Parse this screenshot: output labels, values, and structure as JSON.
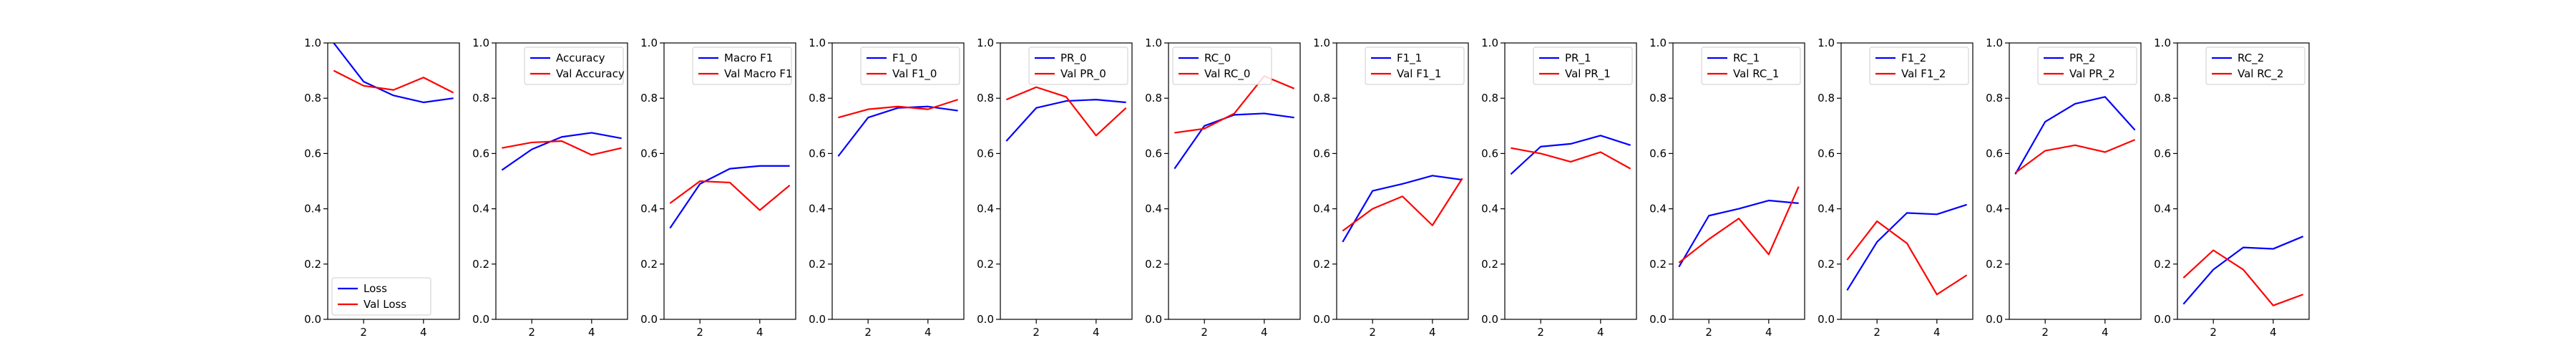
{
  "colors": {
    "train": "#0000ff",
    "val": "#ff0000",
    "axis": "#000000",
    "legend_edge": "#cccccc"
  },
  "chart_data": [
    {
      "type": "line",
      "x": [
        1,
        2,
        3,
        4,
        5
      ],
      "xticks": [
        "2",
        "4"
      ],
      "xlim": [
        0.8,
        5.2
      ],
      "yticks": [
        "0.0",
        "0.2",
        "0.4",
        "0.6",
        "0.8",
        "1.0"
      ],
      "ylim": [
        0,
        1
      ],
      "grid": false,
      "legend_position": "lower-left",
      "series": [
        {
          "name": "Loss",
          "color": "#0000ff",
          "values": [
            1.0,
            0.86,
            0.81,
            0.785,
            0.8
          ]
        },
        {
          "name": "Val Loss",
          "color": "#ff0000",
          "values": [
            0.9,
            0.845,
            0.83,
            0.875,
            0.82
          ]
        }
      ]
    },
    {
      "type": "line",
      "x": [
        1,
        2,
        3,
        4,
        5
      ],
      "xticks": [
        "2",
        "4"
      ],
      "xlim": [
        0.8,
        5.2
      ],
      "yticks": [
        "0.0",
        "0.2",
        "0.4",
        "0.6",
        "0.8",
        "1.0"
      ],
      "ylim": [
        0,
        1
      ],
      "grid": false,
      "legend_position": "top-right",
      "series": [
        {
          "name": "Accuracy",
          "color": "#0000ff",
          "values": [
            0.54,
            0.615,
            0.66,
            0.675,
            0.655
          ]
        },
        {
          "name": "Val Accuracy",
          "color": "#ff0000",
          "values": [
            0.62,
            0.64,
            0.645,
            0.595,
            0.62
          ]
        }
      ]
    },
    {
      "type": "line",
      "x": [
        1,
        2,
        3,
        4,
        5
      ],
      "xticks": [
        "2",
        "4"
      ],
      "xlim": [
        0.8,
        5.2
      ],
      "yticks": [
        "0.0",
        "0.2",
        "0.4",
        "0.6",
        "0.8",
        "1.0"
      ],
      "ylim": [
        0,
        1
      ],
      "grid": false,
      "legend_position": "top-right",
      "series": [
        {
          "name": "Macro F1",
          "color": "#0000ff",
          "values": [
            0.33,
            0.49,
            0.545,
            0.555,
            0.555
          ]
        },
        {
          "name": "Val Macro F1",
          "color": "#ff0000",
          "values": [
            0.42,
            0.5,
            0.495,
            0.395,
            0.485
          ]
        }
      ]
    },
    {
      "type": "line",
      "x": [
        1,
        2,
        3,
        4,
        5
      ],
      "xticks": [
        "2",
        "4"
      ],
      "xlim": [
        0.8,
        5.2
      ],
      "yticks": [
        "0.0",
        "0.2",
        "0.4",
        "0.6",
        "0.8",
        "1.0"
      ],
      "ylim": [
        0,
        1
      ],
      "grid": false,
      "legend_position": "top-right",
      "series": [
        {
          "name": "F1_0",
          "color": "#0000ff",
          "values": [
            0.59,
            0.73,
            0.765,
            0.77,
            0.755
          ]
        },
        {
          "name": "Val F1_0",
          "color": "#ff0000",
          "values": [
            0.73,
            0.76,
            0.77,
            0.76,
            0.795
          ]
        }
      ]
    },
    {
      "type": "line",
      "x": [
        1,
        2,
        3,
        4,
        5
      ],
      "xticks": [
        "2",
        "4"
      ],
      "xlim": [
        0.8,
        5.2
      ],
      "yticks": [
        "0.0",
        "0.2",
        "0.4",
        "0.6",
        "0.8",
        "1.0"
      ],
      "ylim": [
        0,
        1
      ],
      "grid": false,
      "legend_position": "top-right",
      "series": [
        {
          "name": "PR_0",
          "color": "#0000ff",
          "values": [
            0.645,
            0.765,
            0.79,
            0.795,
            0.785
          ]
        },
        {
          "name": "Val PR_0",
          "color": "#ff0000",
          "values": [
            0.795,
            0.84,
            0.805,
            0.665,
            0.765
          ]
        }
      ]
    },
    {
      "type": "line",
      "x": [
        1,
        2,
        3,
        4,
        5
      ],
      "xticks": [
        "2",
        "4"
      ],
      "xlim": [
        0.8,
        5.2
      ],
      "yticks": [
        "0.0",
        "0.2",
        "0.4",
        "0.6",
        "0.8",
        "1.0"
      ],
      "ylim": [
        0,
        1
      ],
      "grid": false,
      "legend_position": "top-left",
      "series": [
        {
          "name": "RC_0",
          "color": "#0000ff",
          "values": [
            0.545,
            0.7,
            0.74,
            0.745,
            0.73
          ]
        },
        {
          "name": "Val RC_0",
          "color": "#ff0000",
          "values": [
            0.675,
            0.69,
            0.745,
            0.88,
            0.835
          ]
        }
      ]
    },
    {
      "type": "line",
      "x": [
        1,
        2,
        3,
        4,
        5
      ],
      "xticks": [
        "2",
        "4"
      ],
      "xlim": [
        0.8,
        5.2
      ],
      "yticks": [
        "0.0",
        "0.2",
        "0.4",
        "0.6",
        "0.8",
        "1.0"
      ],
      "ylim": [
        0,
        1
      ],
      "grid": false,
      "legend_position": "top-right",
      "series": [
        {
          "name": "F1_1",
          "color": "#0000ff",
          "values": [
            0.28,
            0.465,
            0.49,
            0.52,
            0.505
          ]
        },
        {
          "name": "Val F1_1",
          "color": "#ff0000",
          "values": [
            0.32,
            0.4,
            0.445,
            0.34,
            0.51
          ]
        }
      ]
    },
    {
      "type": "line",
      "x": [
        1,
        2,
        3,
        4,
        5
      ],
      "xticks": [
        "2",
        "4"
      ],
      "xlim": [
        0.8,
        5.2
      ],
      "yticks": [
        "0.0",
        "0.2",
        "0.4",
        "0.6",
        "0.8",
        "1.0"
      ],
      "ylim": [
        0,
        1
      ],
      "grid": false,
      "legend_position": "top-right",
      "series": [
        {
          "name": "PR_1",
          "color": "#0000ff",
          "values": [
            0.525,
            0.625,
            0.635,
            0.665,
            0.63
          ]
        },
        {
          "name": "Val PR_1",
          "color": "#ff0000",
          "values": [
            0.62,
            0.6,
            0.57,
            0.605,
            0.545
          ]
        }
      ]
    },
    {
      "type": "line",
      "x": [
        1,
        2,
        3,
        4,
        5
      ],
      "xticks": [
        "2",
        "4"
      ],
      "xlim": [
        0.8,
        5.2
      ],
      "yticks": [
        "0.0",
        "0.2",
        "0.4",
        "0.6",
        "0.8",
        "1.0"
      ],
      "ylim": [
        0,
        1
      ],
      "grid": false,
      "legend_position": "top-right",
      "series": [
        {
          "name": "RC_1",
          "color": "#0000ff",
          "values": [
            0.19,
            0.375,
            0.4,
            0.43,
            0.42
          ]
        },
        {
          "name": "Val RC_1",
          "color": "#ff0000",
          "values": [
            0.205,
            0.29,
            0.365,
            0.235,
            0.48
          ]
        }
      ]
    },
    {
      "type": "line",
      "x": [
        1,
        2,
        3,
        4,
        5
      ],
      "xticks": [
        "2",
        "4"
      ],
      "xlim": [
        0.8,
        5.2
      ],
      "yticks": [
        "0.0",
        "0.2",
        "0.4",
        "0.6",
        "0.8",
        "1.0"
      ],
      "ylim": [
        0,
        1
      ],
      "grid": false,
      "legend_position": "top-right",
      "series": [
        {
          "name": "F1_2",
          "color": "#0000ff",
          "values": [
            0.105,
            0.28,
            0.385,
            0.38,
            0.415
          ]
        },
        {
          "name": "Val F1_2",
          "color": "#ff0000",
          "values": [
            0.215,
            0.355,
            0.275,
            0.09,
            0.16
          ]
        }
      ]
    },
    {
      "type": "line",
      "x": [
        1,
        2,
        3,
        4,
        5
      ],
      "xticks": [
        "2",
        "4"
      ],
      "xlim": [
        0.8,
        5.2
      ],
      "yticks": [
        "0.0",
        "0.2",
        "0.4",
        "0.6",
        "0.8",
        "1.0"
      ],
      "ylim": [
        0,
        1
      ],
      "grid": false,
      "legend_position": "top-right",
      "series": [
        {
          "name": "PR_2",
          "color": "#0000ff",
          "values": [
            0.525,
            0.715,
            0.78,
            0.805,
            0.685
          ]
        },
        {
          "name": "Val PR_2",
          "color": "#ff0000",
          "values": [
            0.53,
            0.61,
            0.63,
            0.605,
            0.65
          ]
        }
      ]
    },
    {
      "type": "line",
      "x": [
        1,
        2,
        3,
        4,
        5
      ],
      "xticks": [
        "2",
        "4"
      ],
      "xlim": [
        0.8,
        5.2
      ],
      "yticks": [
        "0.0",
        "0.2",
        "0.4",
        "0.6",
        "0.8",
        "1.0"
      ],
      "ylim": [
        0,
        1
      ],
      "grid": false,
      "legend_position": "top-right",
      "series": [
        {
          "name": "RC_2",
          "color": "#0000ff",
          "values": [
            0.055,
            0.18,
            0.26,
            0.255,
            0.3
          ]
        },
        {
          "name": "Val RC_2",
          "color": "#ff0000",
          "values": [
            0.15,
            0.25,
            0.18,
            0.05,
            0.09
          ]
        }
      ]
    }
  ]
}
